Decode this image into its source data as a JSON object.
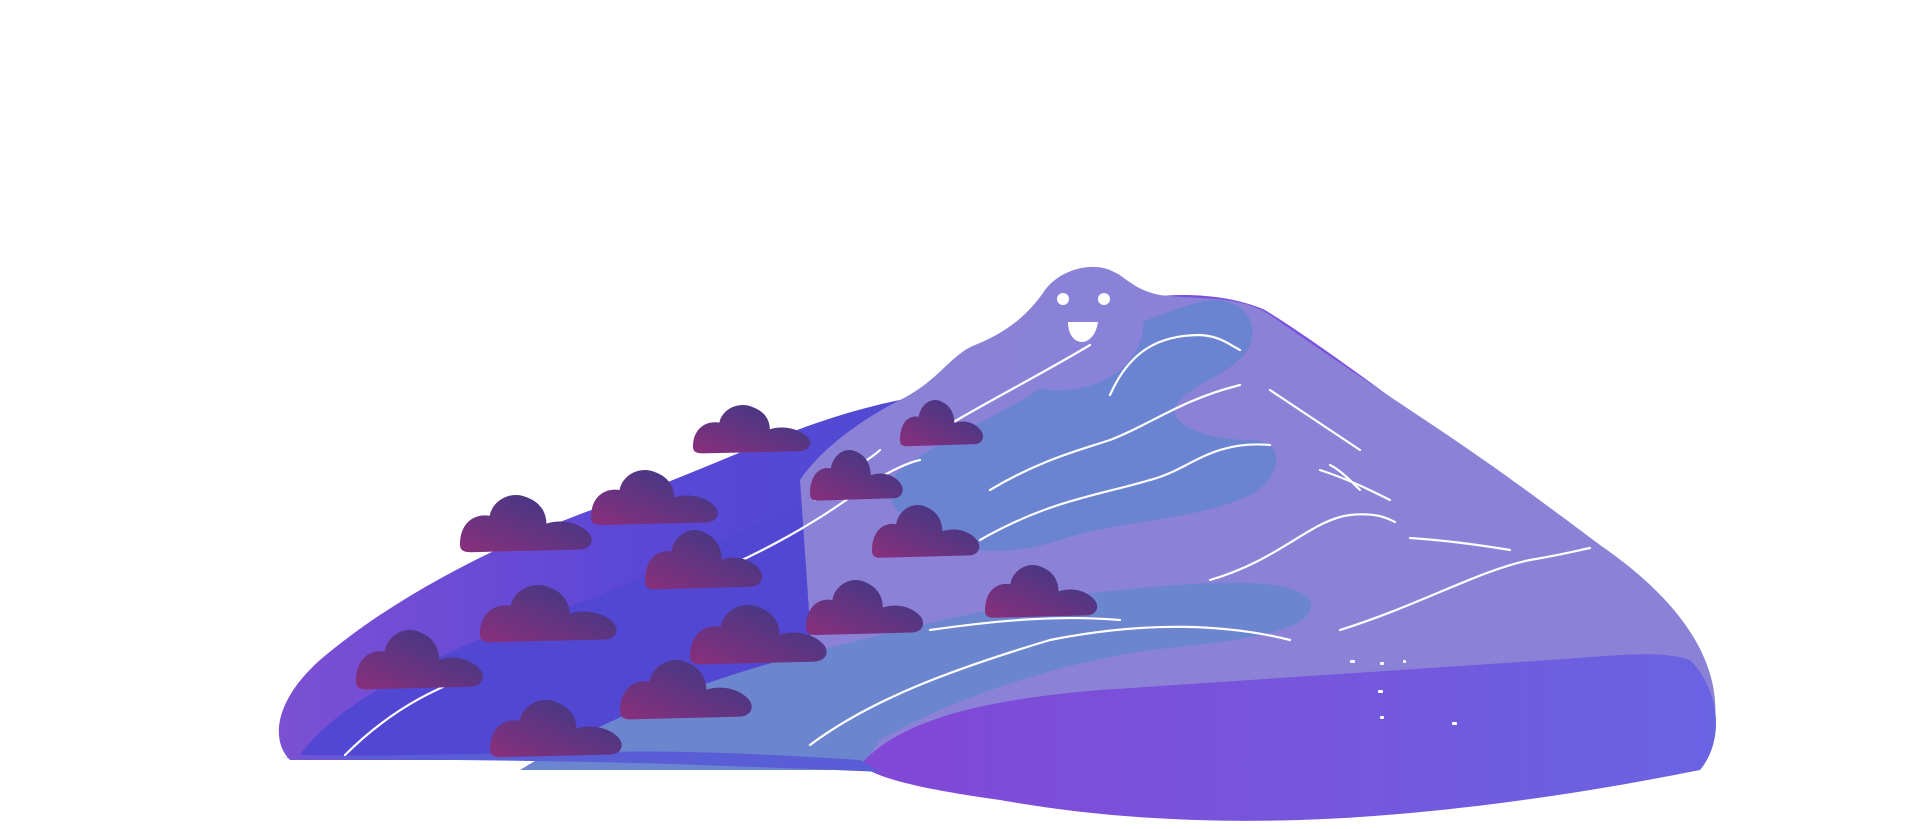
{
  "illustration": {
    "subject": "mountain-character-with-bushes",
    "colors": {
      "background": "#ffffff",
      "mountain_back": "#7e57d9",
      "mountain_mid_light": "#8b80d6",
      "mountain_blue": "#6b84d0",
      "mountain_slope": "#4a4ccf",
      "foreground": "#7a55d8",
      "foreground_edge": "#6a62e0",
      "bush_dark": "#3f3f8f",
      "bush_magenta": "#7a2e78",
      "face": "#ffffff"
    }
  }
}
